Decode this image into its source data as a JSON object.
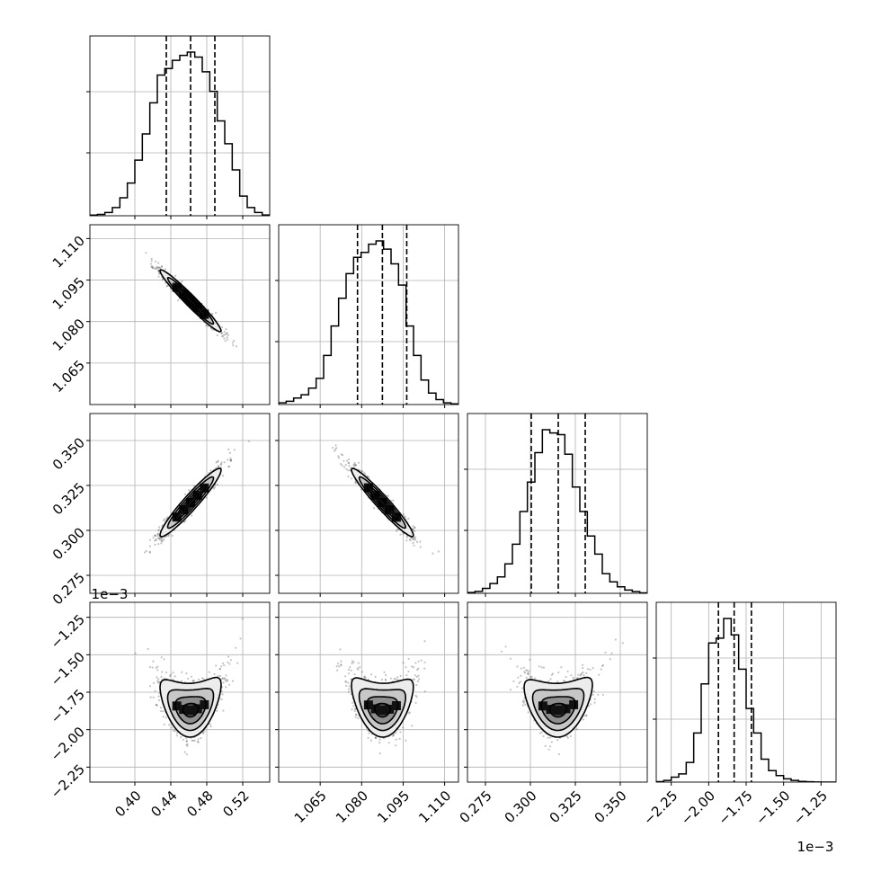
{
  "chart_data": {
    "type": "corner",
    "params": [
      {
        "lim": [
          0.35,
          0.55
        ],
        "ticks": [
          0.4,
          0.44,
          0.48,
          0.52
        ],
        "tick_labels": [
          "0.40",
          "0.44",
          "0.48",
          "0.52"
        ],
        "mu": 0.462,
        "sd": 0.017,
        "quantiles": [
          0.435,
          0.462,
          0.489
        ]
      },
      {
        "lim": [
          1.05,
          1.115
        ],
        "ticks": [
          1.065,
          1.08,
          1.095,
          1.11
        ],
        "tick_labels": [
          "1.065",
          "1.080",
          "1.095",
          "1.110"
        ],
        "mu": 1.0875,
        "sd": 0.0056,
        "quantiles": [
          1.0785,
          1.0875,
          1.0963
        ]
      },
      {
        "lim": [
          0.265,
          0.365
        ],
        "ticks": [
          0.275,
          0.3,
          0.325,
          0.35
        ],
        "tick_labels": [
          "0.275",
          "0.300",
          "0.325",
          "0.350"
        ],
        "mu": 0.3155,
        "sd": 0.0095,
        "quantiles": [
          0.3005,
          0.3155,
          0.3305
        ]
      },
      {
        "lim": [
          -2.35,
          -1.15
        ],
        "ticks": [
          -2.25,
          -2.0,
          -1.75,
          -1.5,
          -1.25
        ],
        "tick_labels": [
          "−2.25",
          "−2.00",
          "−1.75",
          "−1.50",
          "−1.25"
        ],
        "mu": -1.83,
        "sd": 0.09,
        "quantiles": [
          -1.935,
          -1.83,
          -1.715
        ]
      }
    ],
    "bottom_offset_label": "1e−3",
    "left_offset_label": "1e−3",
    "histograms": [
      [
        0.004,
        0.008,
        0.02,
        0.05,
        0.11,
        0.2,
        0.34,
        0.5,
        0.69,
        0.86,
        0.9,
        0.95,
        0.98,
        1.0,
        0.97,
        0.88,
        0.76,
        0.58,
        0.44,
        0.28,
        0.12,
        0.05,
        0.02,
        0.005
      ],
      [
        0.01,
        0.02,
        0.04,
        0.06,
        0.1,
        0.16,
        0.3,
        0.48,
        0.65,
        0.8,
        0.9,
        0.93,
        0.98,
        1.0,
        0.95,
        0.86,
        0.73,
        0.48,
        0.3,
        0.15,
        0.07,
        0.03,
        0.01,
        0.004
      ],
      [
        0.005,
        0.012,
        0.03,
        0.06,
        0.1,
        0.18,
        0.3,
        0.5,
        0.68,
        0.86,
        1.0,
        0.98,
        0.97,
        0.85,
        0.65,
        0.5,
        0.35,
        0.24,
        0.12,
        0.07,
        0.04,
        0.02,
        0.01,
        0.003
      ],
      [
        0.003,
        0.01,
        0.03,
        0.05,
        0.12,
        0.3,
        0.6,
        0.85,
        0.88,
        1.0,
        0.9,
        0.69,
        0.45,
        0.3,
        0.14,
        0.07,
        0.04,
        0.02,
        0.01,
        0.004,
        0.002,
        0.001,
        0.0,
        0.0
      ]
    ],
    "correlations": [
      [
        1,
        -0.97,
        0.95,
        0.05
      ],
      [
        -0.97,
        1,
        -0.96,
        -0.03
      ],
      [
        0.95,
        -0.96,
        1,
        0.05
      ],
      [
        0.05,
        -0.03,
        0.05,
        1
      ]
    ],
    "hist_color": "#000000",
    "grid": true
  }
}
